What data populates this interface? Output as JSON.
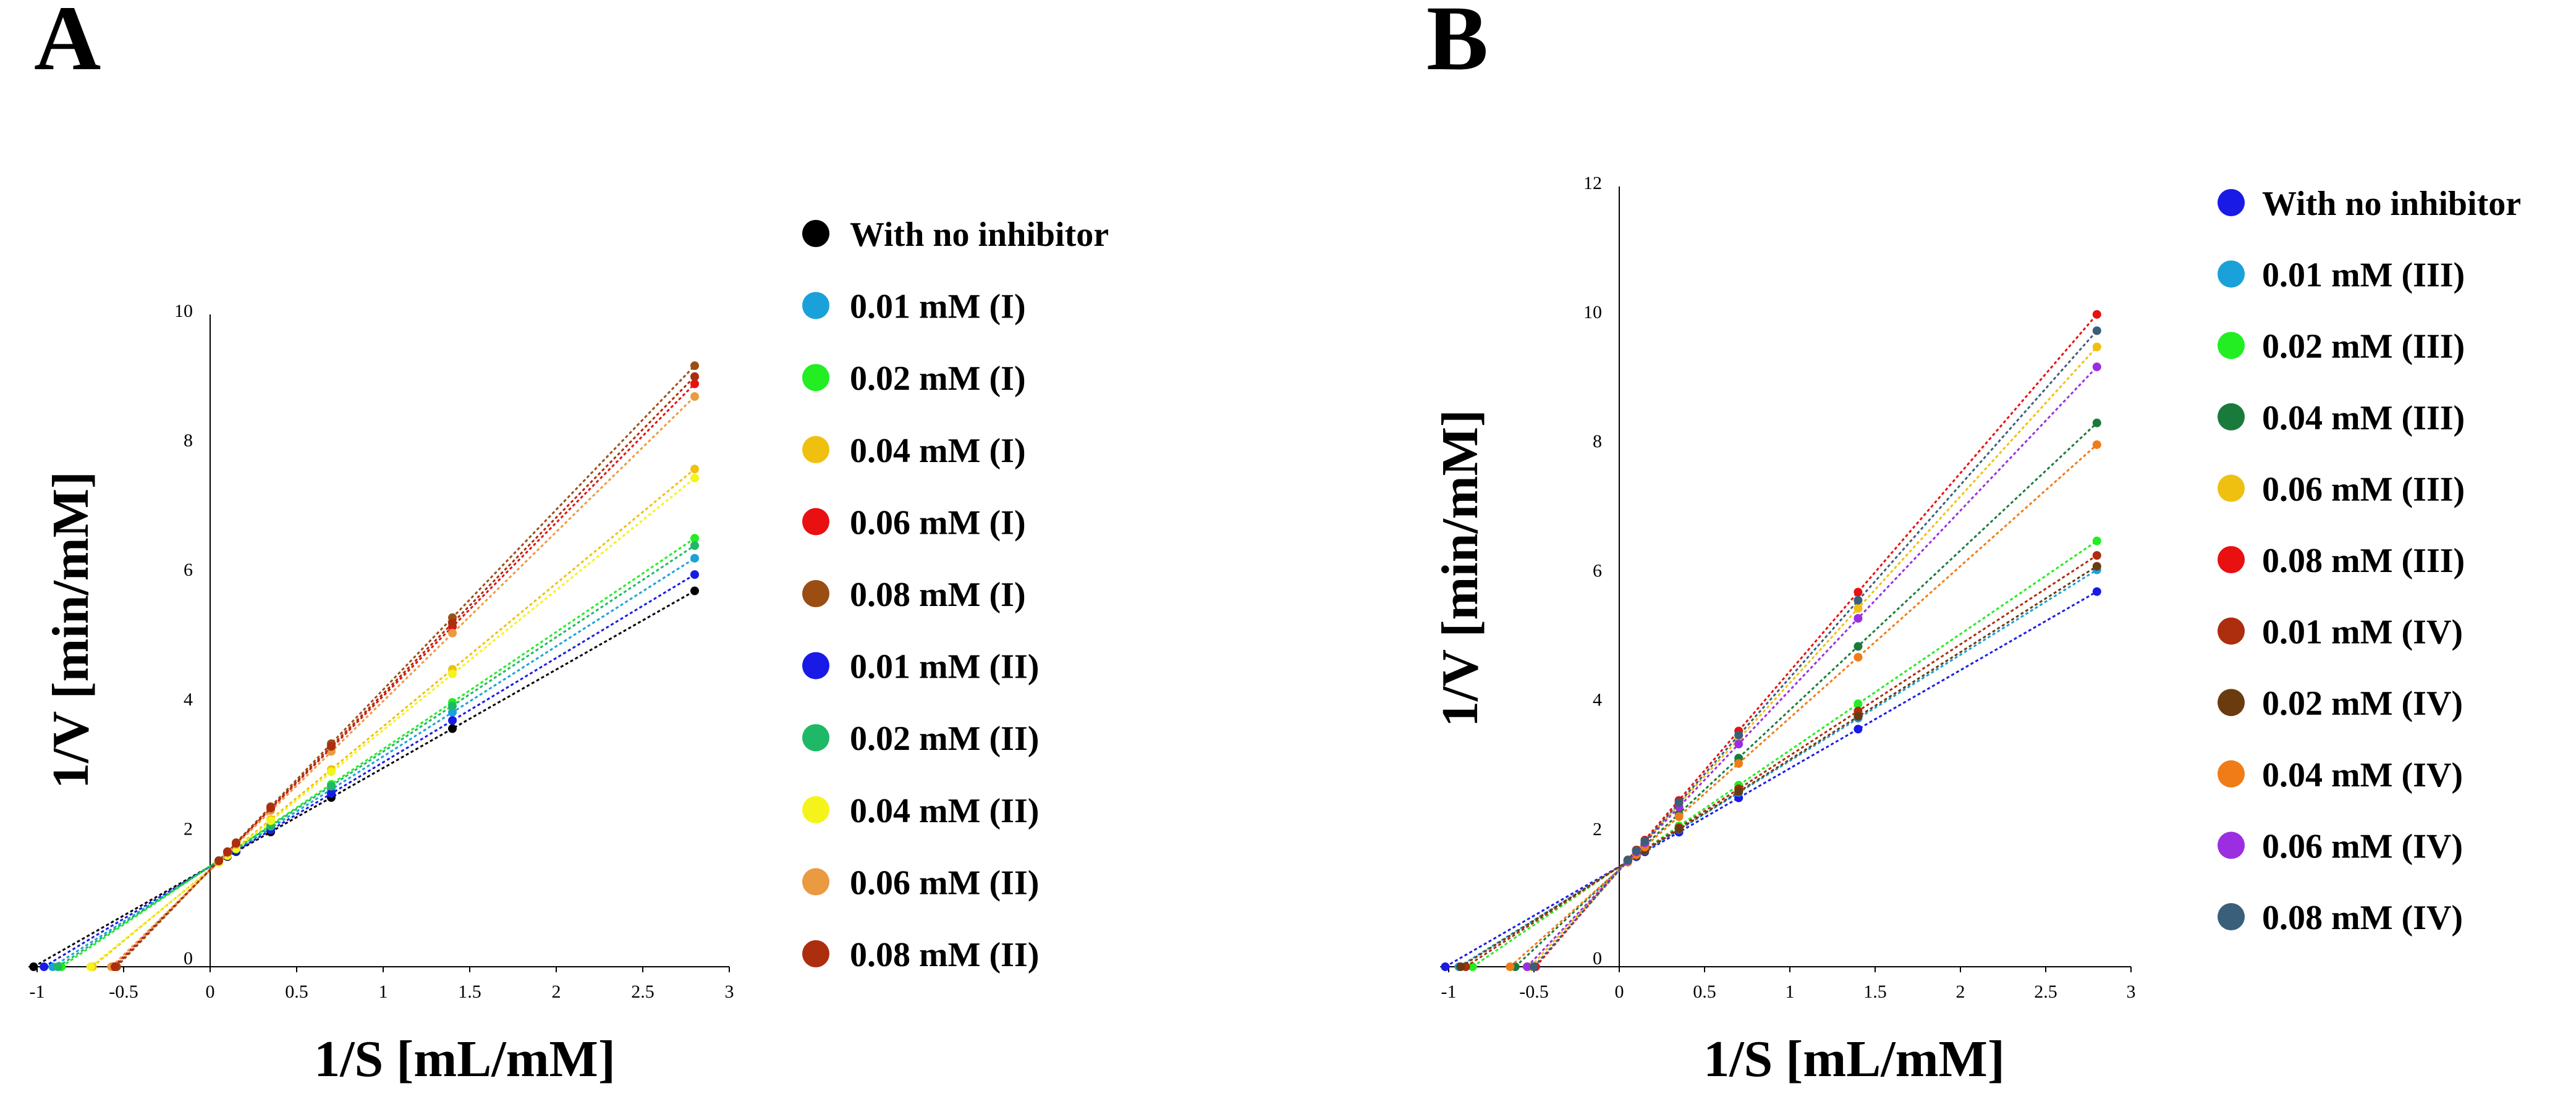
{
  "figure": {
    "panels": [
      {
        "id": "A",
        "letter": "A",
        "xlabel": "1/S [mL/mM]",
        "ylabel": "1/V [min/mM]",
        "x_ticks": [
          "-1",
          "-0.5",
          "0",
          "0.5",
          "1",
          "1.5",
          "2",
          "2.5",
          "3"
        ],
        "y_ticks": [
          "0",
          "2",
          "4",
          "6",
          "8",
          "10"
        ]
      },
      {
        "id": "B",
        "letter": "B",
        "xlabel": "1/S [mL/mM]",
        "ylabel": "1/V [min/mM]",
        "x_ticks": [
          "-1",
          "-0.5",
          "0",
          "0.5",
          "1",
          "1.5",
          "2",
          "2.5",
          "3"
        ],
        "y_ticks": [
          "0",
          "2",
          "4",
          "6",
          "8",
          "10",
          "12"
        ]
      }
    ]
  },
  "chart_data": [
    {
      "panel": "A",
      "type": "scatter",
      "title": "",
      "xlabel": "1/S [mL/mM]",
      "ylabel": "1/V [min/mM]",
      "xlim": [
        -1.05,
        3
      ],
      "ylim": [
        0,
        10
      ],
      "grid": false,
      "legend_position": "right",
      "x": [
        0.05,
        0.1,
        0.15,
        0.35,
        0.7,
        1.4,
        2.8
      ],
      "series": [
        {
          "name": "With no inhibitor",
          "color": "#000000",
          "slope": 1.52,
          "intercept": 1.55,
          "x_intercept": -1.02
        },
        {
          "name": "0.01 mM (I)",
          "color": "#1ba1d9",
          "slope": 1.7,
          "intercept": 1.55,
          "x_intercept": -0.91
        },
        {
          "name": "0.02 mM (I)",
          "color": "#22ee22",
          "slope": 1.81,
          "intercept": 1.55,
          "x_intercept": -0.86
        },
        {
          "name": "0.04 mM (I)",
          "color": "#efc010",
          "slope": 2.21,
          "intercept": 1.5,
          "x_intercept": -0.68
        },
        {
          "name": "0.06 mM (I)",
          "color": "#e81010",
          "slope": 2.68,
          "intercept": 1.5,
          "x_intercept": -0.56
        },
        {
          "name": "0.08 mM (I)",
          "color": "#9a4e14",
          "slope": 2.78,
          "intercept": 1.5,
          "x_intercept": -0.54
        },
        {
          "name": "0.01 mM (II)",
          "color": "#1a1ae6",
          "slope": 1.61,
          "intercept": 1.55,
          "x_intercept": -0.96
        },
        {
          "name": "0.02 mM (II)",
          "color": "#1fb866",
          "slope": 1.77,
          "intercept": 1.55,
          "x_intercept": -0.88
        },
        {
          "name": "0.04 mM (II)",
          "color": "#f4f41a",
          "slope": 2.16,
          "intercept": 1.5,
          "x_intercept": -0.69
        },
        {
          "name": "0.06 mM (II)",
          "color": "#ea9a40",
          "slope": 2.61,
          "intercept": 1.5,
          "x_intercept": -0.57
        },
        {
          "name": "0.08 mM (II)",
          "color": "#ad2d0f",
          "slope": 2.72,
          "intercept": 1.5,
          "x_intercept": -0.55
        }
      ]
    },
    {
      "panel": "B",
      "type": "scatter",
      "title": "",
      "xlabel": "1/S [mL/mM]",
      "ylabel": "1/V [min/mM]",
      "xlim": [
        -1.05,
        3
      ],
      "ylim": [
        0,
        12
      ],
      "grid": false,
      "legend_position": "right",
      "x": [
        0.05,
        0.1,
        0.15,
        0.35,
        0.7,
        1.4,
        2.8
      ],
      "series": [
        {
          "name": "With no inhibitor",
          "color": "#1a1ae6",
          "slope": 1.52,
          "intercept": 1.55,
          "x_intercept": -1.02
        },
        {
          "name": "0.01 mM (III)",
          "color": "#1ba1d9",
          "slope": 1.64,
          "intercept": 1.55,
          "x_intercept": -0.94
        },
        {
          "name": "0.02 mM (III)",
          "color": "#22ee22",
          "slope": 1.8,
          "intercept": 1.55,
          "x_intercept": -0.86
        },
        {
          "name": "0.04 mM (III)",
          "color": "#1a7a3c",
          "slope": 2.47,
          "intercept": 1.5,
          "x_intercept": -0.61
        },
        {
          "name": "0.06 mM (III)",
          "color": "#efc010",
          "slope": 2.89,
          "intercept": 1.5,
          "x_intercept": -0.52
        },
        {
          "name": "0.08 mM (III)",
          "color": "#e81010",
          "slope": 3.07,
          "intercept": 1.5,
          "x_intercept": -0.49
        },
        {
          "name": "0.01 mM (IV)",
          "color": "#ad2d0f",
          "slope": 1.72,
          "intercept": 1.55,
          "x_intercept": -0.9
        },
        {
          "name": "0.02 mM (IV)",
          "color": "#6b3b10",
          "slope": 1.66,
          "intercept": 1.55,
          "x_intercept": -0.93
        },
        {
          "name": "0.04 mM (IV)",
          "color": "#f07c18",
          "slope": 2.35,
          "intercept": 1.5,
          "x_intercept": -0.64
        },
        {
          "name": "0.06 mM (IV)",
          "color": "#9b2ee0",
          "slope": 2.78,
          "intercept": 1.5,
          "x_intercept": -0.54
        },
        {
          "name": "0.08 mM (IV)",
          "color": "#3a5f7a",
          "slope": 2.98,
          "intercept": 1.5,
          "x_intercept": -0.5
        }
      ]
    }
  ]
}
